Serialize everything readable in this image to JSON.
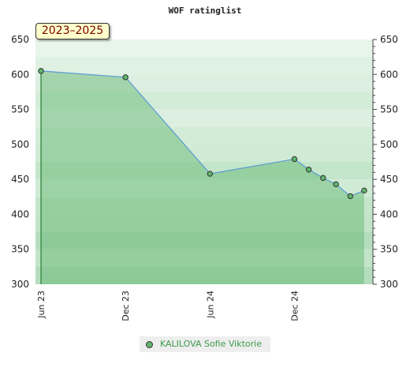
{
  "chart_data": {
    "type": "area",
    "title": "WOF ratinglist",
    "period_label": "2023–2025",
    "ylim": [
      300,
      650
    ],
    "yticks": [
      300,
      350,
      400,
      450,
      500,
      550,
      600,
      650
    ],
    "xticks": [
      {
        "label": "Jun 23",
        "date": "2023-06-01"
      },
      {
        "label": "Dec 23",
        "date": "2023-12-01"
      },
      {
        "label": "Jun 24",
        "date": "2024-06-01"
      },
      {
        "label": "Dec 24",
        "date": "2024-12-01"
      }
    ],
    "xrange": [
      "2023-05-20",
      "2025-05-20"
    ],
    "grid": true,
    "legend_position": "bottom",
    "series": [
      {
        "name": "KALILOVA Sofie Viktorie",
        "color": "#5fb36c",
        "line_color": "#5a9bd4",
        "points": [
          {
            "x": "2023-06-01",
            "y": 605
          },
          {
            "x": "2023-12-01",
            "y": 596
          },
          {
            "x": "2024-06-01",
            "y": 458
          },
          {
            "x": "2024-12-01",
            "y": 479
          },
          {
            "x": "2025-01-01",
            "y": 464
          },
          {
            "x": "2025-02-01",
            "y": 452
          },
          {
            "x": "2025-03-01",
            "y": 443
          },
          {
            "x": "2025-04-01",
            "y": 426
          },
          {
            "x": "2025-05-01",
            "y": 434
          }
        ]
      }
    ]
  }
}
